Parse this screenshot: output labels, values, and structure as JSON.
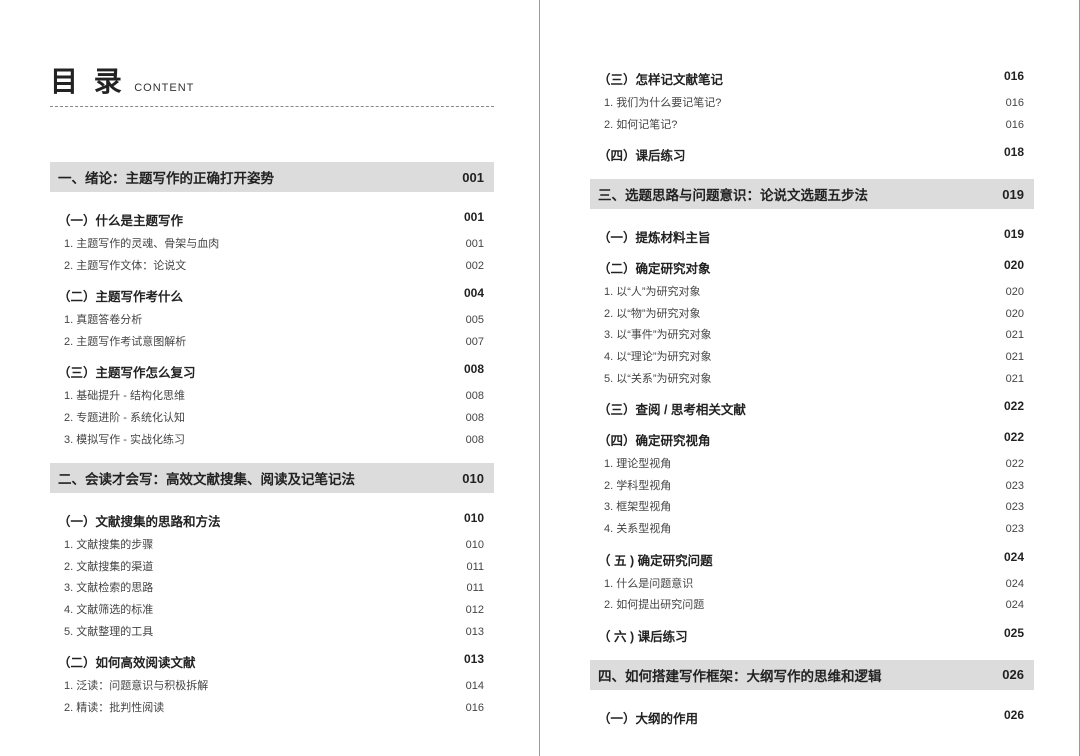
{
  "header": {
    "main": "目 录",
    "sub": "CONTENT"
  },
  "left": [
    {
      "type": "chapter",
      "title": "一、绪论：主题写作的正确打开姿势",
      "page": "001"
    },
    {
      "type": "section",
      "title": "（一）什么是主题写作",
      "page": "001"
    },
    {
      "type": "sub",
      "title": "1. 主题写作的灵魂、骨架与血肉",
      "page": "001"
    },
    {
      "type": "sub",
      "title": "2. 主题写作文体：论说文",
      "page": "002"
    },
    {
      "type": "section",
      "title": "（二）主题写作考什么",
      "page": "004"
    },
    {
      "type": "sub",
      "title": "1. 真题答卷分析",
      "page": "005"
    },
    {
      "type": "sub",
      "title": "2. 主题写作考试意图解析",
      "page": "007"
    },
    {
      "type": "section",
      "title": "（三）主题写作怎么复习",
      "page": "008"
    },
    {
      "type": "sub",
      "title": "1. 基础提升 - 结构化思维",
      "page": "008"
    },
    {
      "type": "sub",
      "title": "2. 专题进阶 - 系统化认知",
      "page": "008"
    },
    {
      "type": "sub",
      "title": "3. 模拟写作 - 实战化练习",
      "page": "008"
    },
    {
      "type": "chapter",
      "title": "二、会读才会写：高效文献搜集、阅读及记笔记法",
      "page": "010"
    },
    {
      "type": "section",
      "title": "（一）文献搜集的思路和方法",
      "page": "010"
    },
    {
      "type": "sub",
      "title": "1. 文献搜集的步骤",
      "page": "010"
    },
    {
      "type": "sub",
      "title": "2. 文献搜集的渠道",
      "page": "011"
    },
    {
      "type": "sub",
      "title": "3. 文献检索的思路",
      "page": "011"
    },
    {
      "type": "sub",
      "title": "4. 文献筛选的标准",
      "page": "012"
    },
    {
      "type": "sub",
      "title": "5. 文献整理的工具",
      "page": "013"
    },
    {
      "type": "section",
      "title": "（二）如何高效阅读文献",
      "page": "013"
    },
    {
      "type": "sub",
      "title": "1. 泛读：问题意识与积极拆解",
      "page": "014"
    },
    {
      "type": "sub",
      "title": "2. 精读：批判性阅读",
      "page": "016"
    }
  ],
  "right": [
    {
      "type": "section",
      "title": "（三）怎样记文献笔记",
      "page": "016"
    },
    {
      "type": "sub",
      "title": "1. 我们为什么要记笔记?",
      "page": "016"
    },
    {
      "type": "sub",
      "title": "2. 如何记笔记?",
      "page": "016"
    },
    {
      "type": "section",
      "title": "（四）课后练习",
      "page": "018"
    },
    {
      "type": "chapter",
      "title": "三、选题思路与问题意识：论说文选题五步法",
      "page": "019"
    },
    {
      "type": "section",
      "title": "（一）提炼材料主旨",
      "page": "019"
    },
    {
      "type": "section",
      "title": "（二）确定研究对象",
      "page": "020"
    },
    {
      "type": "sub",
      "title": "1. 以“人”为研究对象",
      "page": "020"
    },
    {
      "type": "sub",
      "title": "2. 以“物”为研究对象",
      "page": "020"
    },
    {
      "type": "sub",
      "title": "3. 以“事件”为研究对象",
      "page": "021"
    },
    {
      "type": "sub",
      "title": "4. 以“理论”为研究对象",
      "page": "021"
    },
    {
      "type": "sub",
      "title": "5. 以“关系”为研究对象",
      "page": "021"
    },
    {
      "type": "section",
      "title": "（三）查阅 / 思考相关文献",
      "page": "022"
    },
    {
      "type": "section",
      "title": "（四）确定研究视角",
      "page": "022"
    },
    {
      "type": "sub",
      "title": "1. 理论型视角",
      "page": "022"
    },
    {
      "type": "sub",
      "title": "2. 学科型视角",
      "page": "023"
    },
    {
      "type": "sub",
      "title": "3. 框架型视角",
      "page": "023"
    },
    {
      "type": "sub",
      "title": "4. 关系型视角",
      "page": "023"
    },
    {
      "type": "section",
      "title": "（ 五 ) 确定研究问题",
      "page": "024"
    },
    {
      "type": "sub",
      "title": "1. 什么是问题意识",
      "page": "024"
    },
    {
      "type": "sub",
      "title": "2. 如何提出研究问题",
      "page": "024"
    },
    {
      "type": "section",
      "title": "（ 六 ) 课后练习",
      "page": "025"
    },
    {
      "type": "chapter",
      "title": "四、如何搭建写作框架：大纲写作的思维和逻辑",
      "page": "026"
    },
    {
      "type": "section",
      "title": "（一）大纲的作用",
      "page": "026"
    }
  ]
}
